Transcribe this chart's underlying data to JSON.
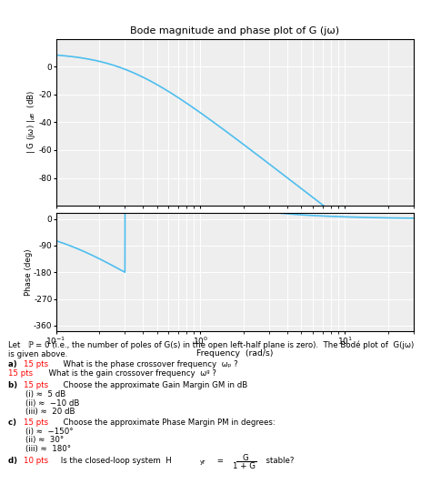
{
  "title": "Bode magnitude and phase plot of G (jω)",
  "mag_ylabel": "| G (jω) |_{dB}  (dB)",
  "phase_ylabel": "Phase (deg)",
  "xlabel": "Frequency  (rad/s)",
  "mag_ylim": [
    -100,
    20
  ],
  "mag_yticks": [
    0,
    -20,
    -40,
    -60,
    -80
  ],
  "phase_ylim": [
    -380,
    20
  ],
  "phase_yticks": [
    0,
    -90,
    -180,
    -270,
    -360
  ],
  "xlim": [
    0.1,
    30
  ],
  "line_color": "#4DBEEE",
  "bg_color": "#eeeeee",
  "grid_color": "#ffffff",
  "K": 3.2,
  "pole": 0.3,
  "n_poles": 4,
  "font_size": 6.2,
  "title_fontsize": 8.0,
  "tick_fontsize": 6.5
}
